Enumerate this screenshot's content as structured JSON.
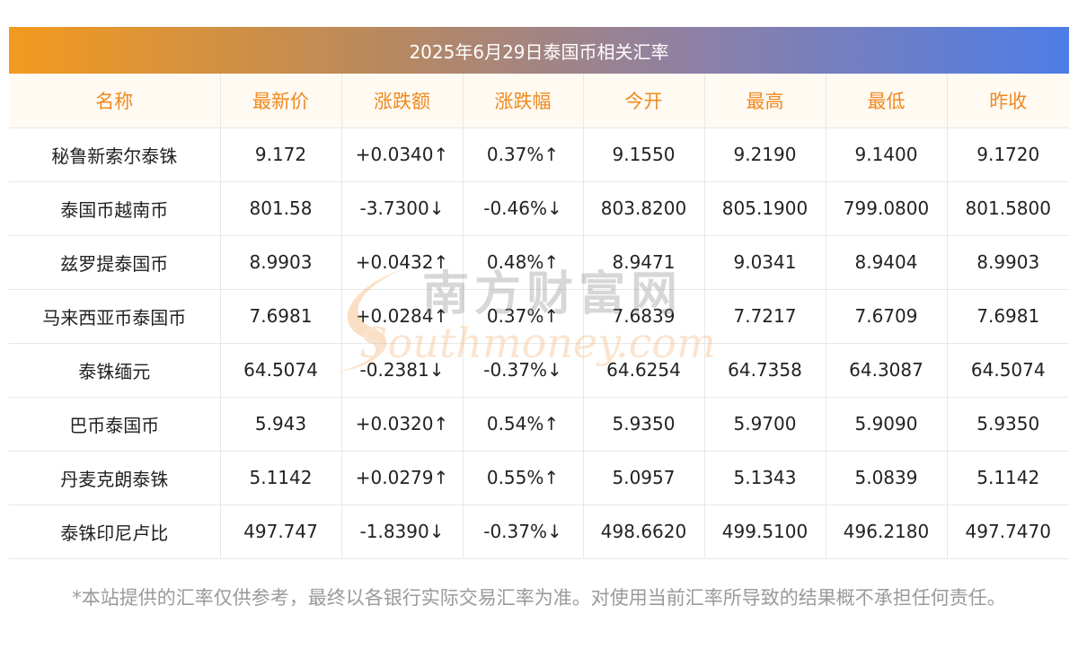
{
  "title": "2025年6月29日泰国币相关汇率",
  "columns": [
    "名称",
    "最新价",
    "涨跌额",
    "涨跌幅",
    "今开",
    "最高",
    "最低",
    "昨收"
  ],
  "rows": [
    {
      "name": "秘鲁新索尔泰铢",
      "latest": "9.172",
      "change": "+0.0340↑",
      "pct": "0.37%↑",
      "open": "9.1550",
      "high": "9.2190",
      "low": "9.1400",
      "prev": "9.1720",
      "dir": "up"
    },
    {
      "name": "泰国币越南币",
      "latest": "801.58",
      "change": "-3.7300↓",
      "pct": "-0.46%↓",
      "open": "803.8200",
      "high": "805.1900",
      "low": "799.0800",
      "prev": "801.5800",
      "dir": "down"
    },
    {
      "name": "兹罗提泰国币",
      "latest": "8.9903",
      "change": "+0.0432↑",
      "pct": "0.48%↑",
      "open": "8.9471",
      "high": "9.0341",
      "low": "8.9404",
      "prev": "8.9903",
      "dir": "up"
    },
    {
      "name": "马来西亚币泰国币",
      "latest": "7.6981",
      "change": "+0.0284↑",
      "pct": "0.37%↑",
      "open": "7.6839",
      "high": "7.7217",
      "low": "7.6709",
      "prev": "7.6981",
      "dir": "up"
    },
    {
      "name": "泰铢缅元",
      "latest": "64.5074",
      "change": "-0.2381↓",
      "pct": "-0.37%↓",
      "open": "64.6254",
      "high": "64.7358",
      "low": "64.3087",
      "prev": "64.5074",
      "dir": "down"
    },
    {
      "name": "巴币泰国币",
      "latest": "5.943",
      "change": "+0.0320↑",
      "pct": "0.54%↑",
      "open": "5.9350",
      "high": "5.9700",
      "low": "5.9090",
      "prev": "5.9350",
      "dir": "up"
    },
    {
      "name": "丹麦克朗泰铢",
      "latest": "5.1142",
      "change": "+0.0279↑",
      "pct": "0.55%↑",
      "open": "5.0957",
      "high": "5.1343",
      "low": "5.0839",
      "prev": "5.1142",
      "dir": "up"
    },
    {
      "name": "泰铢印尼卢比",
      "latest": "497.747",
      "change": "-1.8390↓",
      "pct": "-0.37%↓",
      "open": "498.6620",
      "high": "499.5100",
      "low": "496.2180",
      "prev": "497.7470",
      "dir": "down"
    }
  ],
  "watermark": {
    "cn": "南方财富网",
    "en": "Southmoney.com"
  },
  "disclaimer": "*本站提供的汇率仅供参考，最终以各银行实际交易汇率为准。对使用当前汇率所导致的结果概不承担任何责任。",
  "colors": {
    "up": "#e31717",
    "down": "#1b8a1b",
    "header_text": "#f0891e",
    "title_start": "#f39a1e",
    "title_end": "#4e7de6"
  }
}
